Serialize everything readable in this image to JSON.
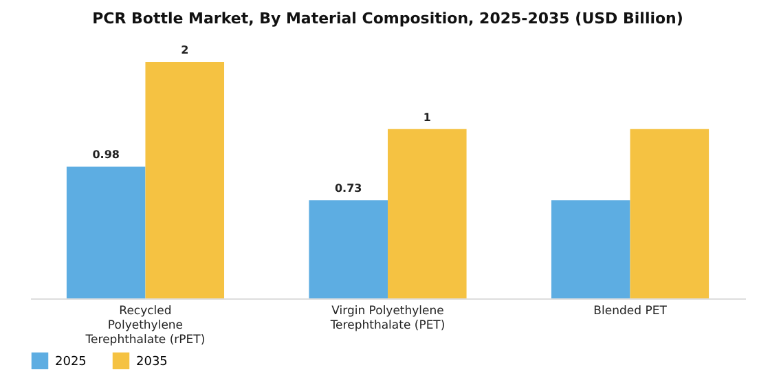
{
  "chart_data": {
    "type": "bar",
    "title": "PCR Bottle Market, By Material Composition, 2025-2035 (USD Billion)",
    "categories": [
      "Recycled Polyethylene Terephthalate (rPET)",
      "Virgin Polyethylene Terephthalate (PET)",
      "Blended PET"
    ],
    "series": [
      {
        "name": "2025",
        "color": "#5dade2",
        "values": [
          0.98,
          0.73,
          0.73
        ],
        "value_labels": [
          "0.98",
          "0.73",
          null
        ]
      },
      {
        "name": "2035",
        "color": "#f5c242",
        "values": [
          1.76,
          1.26,
          1.26
        ],
        "value_labels": [
          "2",
          "1",
          null
        ]
      }
    ],
    "legend": "bottom"
  }
}
